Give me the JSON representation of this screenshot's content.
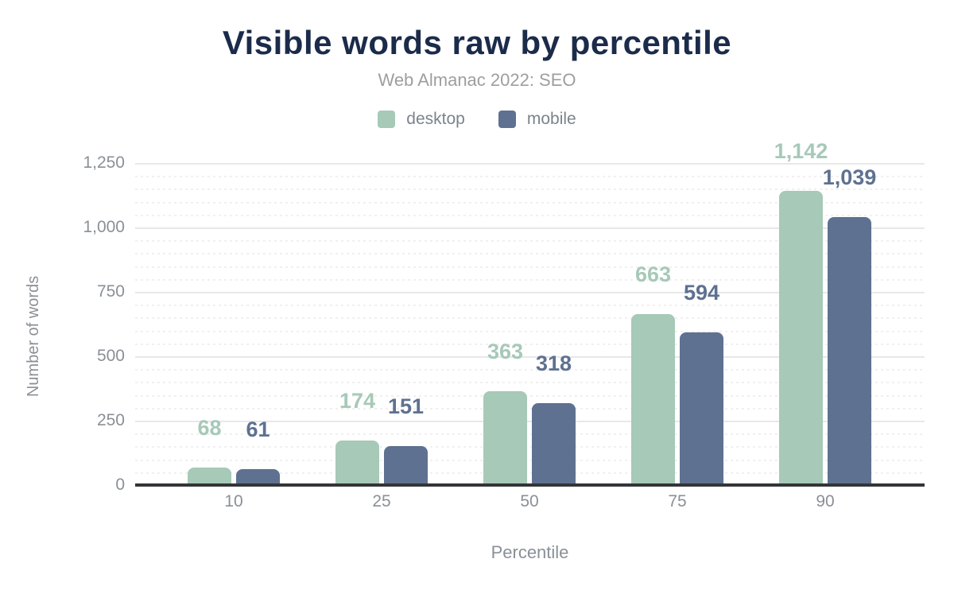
{
  "title": "Visible words raw by percentile",
  "subtitle": "Web Almanac 2022: SEO",
  "colors": {
    "title": "#1b2b4a",
    "subtitle": "#9e9e9e",
    "desktop": "#a7c9b8",
    "mobile": "#5e7190",
    "axis_text": "#8a9097",
    "axis_line": "#333538"
  },
  "chart_data": {
    "type": "bar",
    "title": "Visible words raw by percentile",
    "subtitle": "Web Almanac 2022: SEO",
    "categories": [
      "10",
      "25",
      "50",
      "75",
      "90"
    ],
    "series": [
      {
        "name": "desktop",
        "color": "#a7c9b8",
        "values": [
          68,
          174,
          363,
          663,
          1142
        ],
        "labels": [
          "68",
          "174",
          "363",
          "663",
          "1,142"
        ]
      },
      {
        "name": "mobile",
        "color": "#5e7190",
        "values": [
          61,
          151,
          318,
          594,
          1039
        ],
        "labels": [
          "61",
          "151",
          "318",
          "594",
          "1,039"
        ]
      }
    ],
    "xlabel": "Percentile",
    "ylabel": "Number of words",
    "ylim": [
      0,
      1250
    ],
    "yticks": [
      0,
      250,
      500,
      750,
      1000,
      1250
    ],
    "ytick_labels": [
      "0",
      "250",
      "500",
      "750",
      "1,000",
      "1,250"
    ],
    "minor_grid_step": 50,
    "grid": true,
    "legend_position": "top"
  }
}
